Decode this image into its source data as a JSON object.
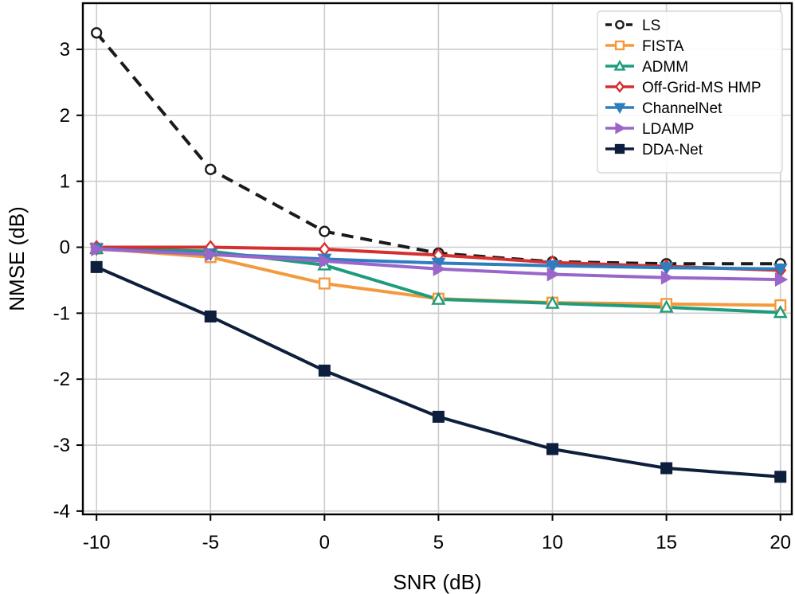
{
  "chart_data": {
    "type": "line",
    "title": "",
    "xlabel": "SNR (dB)",
    "ylabel": "NMSE (dB)",
    "x": [
      -10,
      -5,
      0,
      5,
      10,
      15,
      20
    ],
    "xticks": [
      "-10",
      "-5",
      "0",
      "5",
      "10",
      "15",
      "20"
    ],
    "yticks": [
      "3",
      "2",
      "1",
      "0",
      "-1",
      "-2",
      "-3",
      "-4"
    ],
    "xlim": [
      -10.6,
      20.5
    ],
    "ylim": [
      -4.05,
      3.7
    ],
    "grid": true,
    "legend_position": "top-right",
    "series": [
      {
        "name": "LS",
        "color": "#1a1a1a",
        "marker": "circle-open",
        "dashed": true,
        "values": [
          3.25,
          1.18,
          0.24,
          -0.09,
          -0.22,
          -0.25,
          -0.25
        ]
      },
      {
        "name": "FISTA",
        "color": "#f39a3c",
        "marker": "square-open",
        "dashed": false,
        "values": [
          -0.02,
          -0.15,
          -0.55,
          -0.78,
          -0.84,
          -0.86,
          -0.88
        ]
      },
      {
        "name": "ADMM",
        "color": "#1e9c7e",
        "marker": "triangle-up-open",
        "dashed": false,
        "values": [
          -0.02,
          -0.06,
          -0.27,
          -0.79,
          -0.85,
          -0.91,
          -0.99
        ]
      },
      {
        "name": "Off-Grid-MS HMP",
        "color": "#d62f2f",
        "marker": "diamond-open",
        "dashed": false,
        "values": [
          0.0,
          0.0,
          -0.03,
          -0.12,
          -0.23,
          -0.29,
          -0.35
        ]
      },
      {
        "name": "ChannelNet",
        "color": "#2f7dbf",
        "marker": "triangle-down",
        "dashed": false,
        "values": [
          -0.02,
          -0.1,
          -0.18,
          -0.24,
          -0.28,
          -0.31,
          -0.33
        ]
      },
      {
        "name": "LDAMP",
        "color": "#9b66c9",
        "marker": "triangle-right",
        "dashed": false,
        "values": [
          -0.03,
          -0.11,
          -0.21,
          -0.33,
          -0.41,
          -0.46,
          -0.49
        ]
      },
      {
        "name": "DDA-Net",
        "color": "#0d1f3c",
        "marker": "square",
        "dashed": false,
        "values": [
          -0.3,
          -1.05,
          -1.87,
          -2.57,
          -3.06,
          -3.35,
          -3.48
        ]
      }
    ]
  }
}
